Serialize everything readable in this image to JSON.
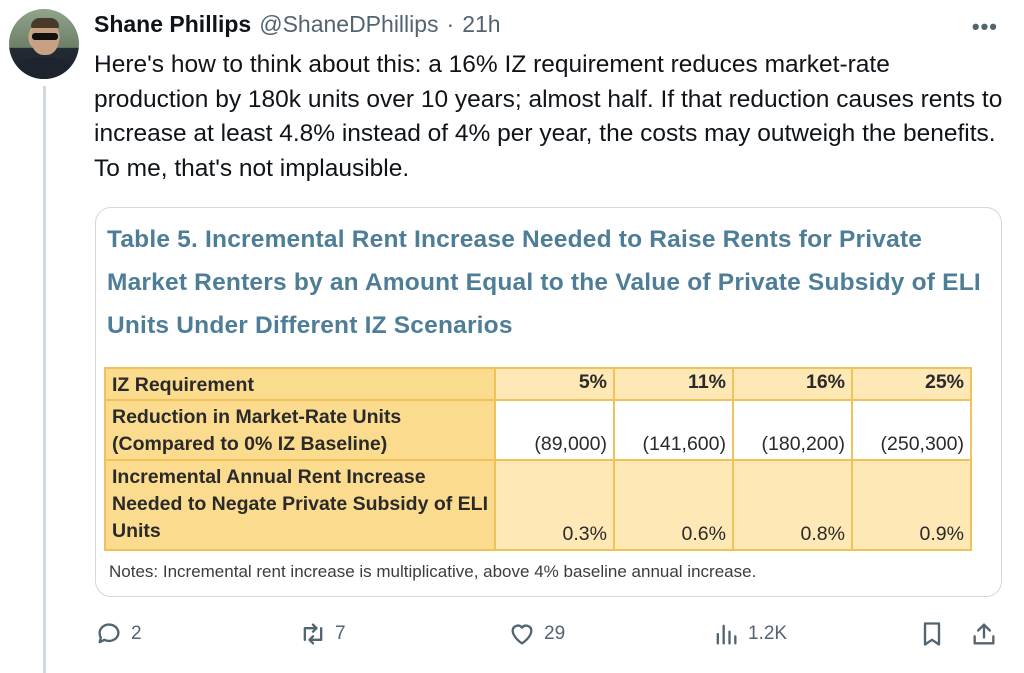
{
  "tweet": {
    "author_name": "Shane Phillips",
    "handle": "@ShaneDPhillips",
    "separator": "·",
    "time": "21h",
    "more_label": "•••",
    "text": "Here's how to think about this: a 16% IZ requirement reduces market-rate production by 180k units over 10 years; almost half. If that reduction causes rents to increase at least 4.8% instead of 4% per year, the costs may outweigh the benefits. To me, that's not implausible."
  },
  "card": {
    "title": "Table 5. Incremental Rent Increase Needed to Raise Rents for Private Market Renters by an Amount Equal to the Value of Private Subsidy of ELI Units Under Different IZ Scenarios",
    "header_label": "IZ Requirement",
    "columns": [
      "5%",
      "11%",
      "16%",
      "25%"
    ],
    "rows": [
      {
        "label": "Reduction in Market-Rate Units (Compared to 0% IZ Baseline)",
        "values": [
          "(89,000)",
          "(141,600)",
          "(180,200)",
          "(250,300)"
        ]
      },
      {
        "label": "Incremental Annual Rent Increase Needed to Negate Private Subsidy of ELI Units",
        "values": [
          "0.3%",
          "0.6%",
          "0.8%",
          "0.9%"
        ]
      }
    ],
    "notes": "Notes: Incremental rent increase is multiplicative, above 4% baseline annual increase."
  },
  "actions": {
    "reply_count": "2",
    "retweet_count": "7",
    "like_count": "29",
    "view_count": "1.2K",
    "icons": [
      "reply-icon",
      "retweet-icon",
      "like-icon",
      "views-icon",
      "bookmark-icon",
      "share-icon"
    ]
  },
  "colors": {
    "title_blue": "#4e7e97",
    "table_header": "#fbdb8e",
    "table_light": "#fde8b6",
    "table_border": "#f1c25a",
    "muted": "#536471"
  }
}
